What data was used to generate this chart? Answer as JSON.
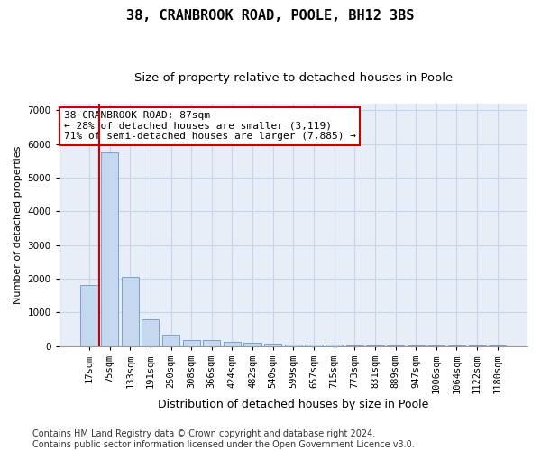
{
  "title": "38, CRANBROOK ROAD, POOLE, BH12 3BS",
  "subtitle": "Size of property relative to detached houses in Poole",
  "xlabel": "Distribution of detached houses by size in Poole",
  "ylabel": "Number of detached properties",
  "categories": [
    "17sqm",
    "75sqm",
    "133sqm",
    "191sqm",
    "250sqm",
    "308sqm",
    "366sqm",
    "424sqm",
    "482sqm",
    "540sqm",
    "599sqm",
    "657sqm",
    "715sqm",
    "773sqm",
    "831sqm",
    "889sqm",
    "947sqm",
    "1006sqm",
    "1064sqm",
    "1122sqm",
    "1180sqm"
  ],
  "values": [
    1800,
    5750,
    2050,
    800,
    330,
    175,
    175,
    115,
    90,
    70,
    50,
    50,
    50,
    5,
    5,
    5,
    5,
    5,
    5,
    5,
    5
  ],
  "bar_color": "#c5d8f0",
  "bar_edge_color": "#6699cc",
  "vline_x": 0.5,
  "vline_color": "#cc0000",
  "annotation_text": "38 CRANBROOK ROAD: 87sqm\n← 28% of detached houses are smaller (3,119)\n71% of semi-detached houses are larger (7,885) →",
  "annotation_box_facecolor": "#ffffff",
  "annotation_box_edgecolor": "#cc0000",
  "ylim": [
    0,
    7200
  ],
  "yticks": [
    0,
    1000,
    2000,
    3000,
    4000,
    5000,
    6000,
    7000
  ],
  "background_color": "#ffffff",
  "plot_background": "#e8eef8",
  "grid_color": "#c8d4e8",
  "footer_line1": "Contains HM Land Registry data © Crown copyright and database right 2024.",
  "footer_line2": "Contains public sector information licensed under the Open Government Licence v3.0.",
  "title_fontsize": 11,
  "subtitle_fontsize": 9.5,
  "xlabel_fontsize": 9,
  "ylabel_fontsize": 8,
  "tick_fontsize": 7.5,
  "annot_fontsize": 8,
  "footer_fontsize": 7
}
